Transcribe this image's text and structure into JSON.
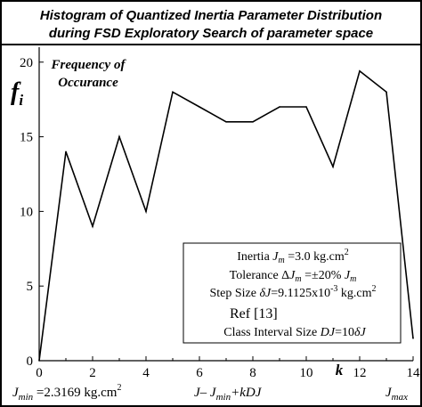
{
  "title_line1": "Histogram of Quantized Inertia Parameter Distribution",
  "title_line2": "during FSD Exploratory Search of parameter space",
  "chart_data": {
    "type": "line",
    "x": [
      0,
      1,
      2,
      3,
      4,
      5,
      6,
      7,
      8,
      9,
      10,
      11,
      12,
      13,
      14
    ],
    "series": [
      {
        "values": [
          0,
          14,
          9,
          15,
          10,
          18,
          17,
          16,
          16,
          17,
          17,
          13,
          19.4,
          18,
          1.5
        ]
      }
    ],
    "xlim": [
      0,
      14
    ],
    "ylim": [
      0,
      21
    ],
    "x_ticks": [
      "0",
      "2",
      "4",
      "6",
      "8",
      "10",
      "12",
      "14"
    ],
    "y_ticks": [
      "0",
      "5",
      "10",
      "15",
      "20"
    ],
    "ylabel_main": "f",
    "ylabel_sub": "i",
    "xlabel": "k",
    "inner_label_line1": "Frequency of",
    "inner_label_line2": "Occurance",
    "grid": false,
    "line_color": "#000000"
  },
  "info_box": {
    "line1_a": "Inertia ",
    "line1_var": "J",
    "line1_sub": "m",
    "line1_b": " =3.0 kg.cm",
    "line1_sup": "2",
    "line2_a": "Tolerance Δ",
    "line2_var": "J",
    "line2_sub": "m",
    "line2_b": " =±20% ",
    "line2_var2": "J",
    "line2_sub2": "m",
    "line3_a": "Step Size ",
    "line3_var": "δJ",
    "line3_b": "=9.1125x10",
    "line3_sup": "-3",
    "line3_c": " kg.cm",
    "line3_sup2": "2",
    "line4": "Ref [13]",
    "line5_a": "Class Interval Size ",
    "line5_var": "DJ",
    "line5_b": "=10",
    "line5_var2": "δJ"
  },
  "bottom": {
    "jmin_var": "J",
    "jmin_sub": "min",
    "jmin_value": " =2.3169 kg.cm",
    "jmin_sup": "2",
    "formula_a": "J",
    "formula_b": "– J",
    "formula_sub": "min",
    "formula_c": "+kDJ",
    "jmax_var": "J",
    "jmax_sub": "max"
  }
}
